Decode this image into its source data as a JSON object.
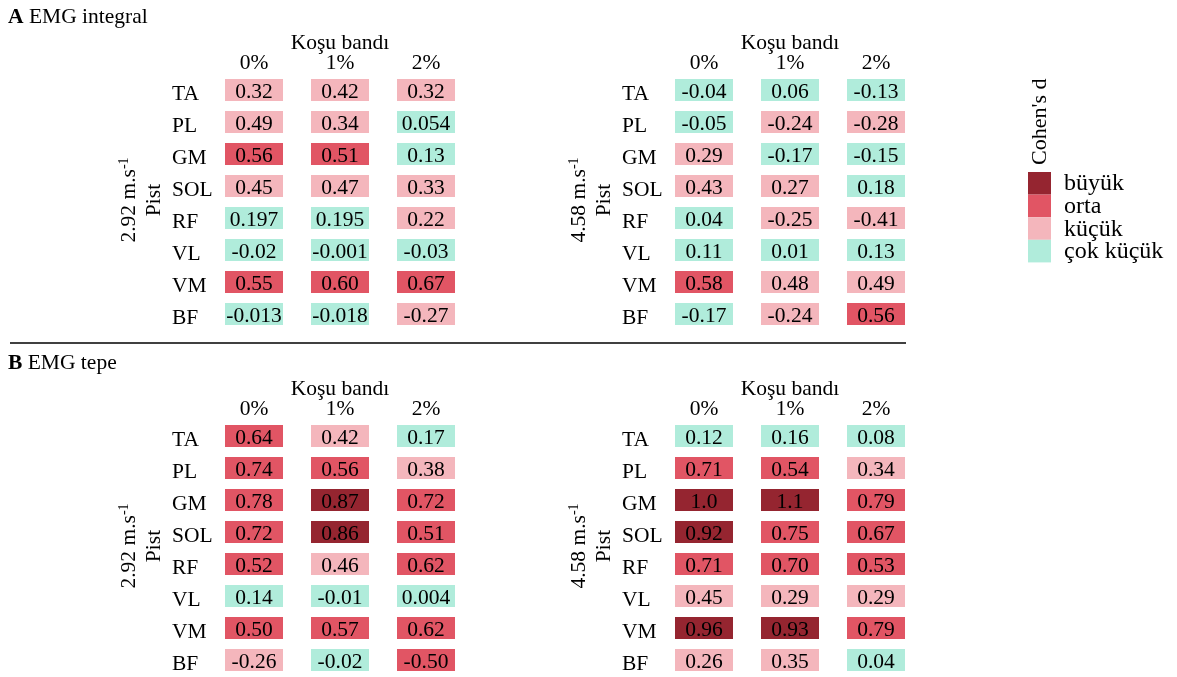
{
  "chart_data": [
    {
      "type": "heatmap",
      "title": "A EMG integral",
      "xlabel": "Koşu bandı",
      "ylabel": "2.92 m.s$^{-1}$\nPist",
      "categories": [
        "0%",
        "1%",
        "2%"
      ],
      "y_categories": [
        "TA",
        "PL",
        "GM",
        "SOL",
        "RF",
        "VL",
        "VM",
        "BF"
      ],
      "data_labels": true,
      "cells": [
        [
          0.32,
          0.42,
          0.32
        ],
        [
          0.49,
          0.34,
          0.054
        ],
        [
          0.56,
          0.51,
          0.13
        ],
        [
          0.45,
          0.47,
          0.33
        ],
        [
          0.197,
          0.195,
          0.22
        ],
        [
          -0.02,
          -0.001,
          -0.03
        ],
        [
          0.55,
          0.6,
          0.67
        ],
        [
          -0.013,
          -0.018,
          -0.27
        ]
      ],
      "cell_labels": [
        [
          "0.32",
          "0.42",
          "0.32"
        ],
        [
          "0.49",
          "0.34",
          "0.054"
        ],
        [
          "0.56",
          "0.51",
          "0.13"
        ],
        [
          "0.45",
          "0.47",
          "0.33"
        ],
        [
          "0.197",
          "0.195",
          "0.22"
        ],
        [
          "-0.02",
          "-0.001",
          "-0.03"
        ],
        [
          "0.55",
          "0.60",
          "0.67"
        ],
        [
          "-0.013",
          "-0.018",
          "-0.27"
        ]
      ],
      "colors": [
        [
          "#f4b6bc",
          "#f4b6bc",
          "#f4b6bc"
        ],
        [
          "#f4b6bc",
          "#f4b6bc",
          "#b0ecdb"
        ],
        [
          "#e15564",
          "#e15564",
          "#b0ecdb"
        ],
        [
          "#f4b6bc",
          "#f4b6bc",
          "#f4b6bc"
        ],
        [
          "#b0ecdb",
          "#b0ecdb",
          "#f4b6bc"
        ],
        [
          "#b0ecdb",
          "#b0ecdb",
          "#b0ecdb"
        ],
        [
          "#e15564",
          "#e15564",
          "#e15564"
        ],
        [
          "#b0ecdb",
          "#b0ecdb",
          "#f4b6bc"
        ]
      ]
    },
    {
      "type": "heatmap",
      "xlabel": "Koşu bandı",
      "ylabel": "4.58 m.s$^{-1}$\nPist",
      "categories": [
        "0%",
        "1%",
        "2%"
      ],
      "y_categories": [
        "TA",
        "PL",
        "GM",
        "SOL",
        "RF",
        "VL",
        "VM",
        "BF"
      ],
      "data_labels": true,
      "cells": [
        [
          -0.04,
          0.06,
          -0.13
        ],
        [
          -0.05,
          -0.24,
          -0.28
        ],
        [
          0.29,
          -0.17,
          -0.15
        ],
        [
          0.43,
          0.27,
          0.18
        ],
        [
          0.04,
          -0.25,
          -0.41
        ],
        [
          0.11,
          0.01,
          0.13
        ],
        [
          0.58,
          0.48,
          0.49
        ],
        [
          -0.17,
          -0.24,
          0.56
        ]
      ],
      "colors": [
        [
          "#b0ecdb",
          "#b0ecdb",
          "#b0ecdb"
        ],
        [
          "#b0ecdb",
          "#f4b6bc",
          "#f4b6bc"
        ],
        [
          "#f4b6bc",
          "#b0ecdb",
          "#b0ecdb"
        ],
        [
          "#f4b6bc",
          "#f4b6bc",
          "#b0ecdb"
        ],
        [
          "#b0ecdb",
          "#f4b6bc",
          "#f4b6bc"
        ],
        [
          "#b0ecdb",
          "#b0ecdb",
          "#b0ecdb"
        ],
        [
          "#e15564",
          "#f4b6bc",
          "#f4b6bc"
        ],
        [
          "#b0ecdb",
          "#f4b6bc",
          "#e15564"
        ]
      ]
    },
    {
      "type": "heatmap",
      "title": "B EMG tepe",
      "xlabel": "Koşu bandı",
      "ylabel": "2.92 m.s$^{-1}$\nPist",
      "categories": [
        "0%",
        "1%",
        "2%"
      ],
      "y_categories": [
        "TA",
        "PL",
        "GM",
        "SOL",
        "RF",
        "VL",
        "VM",
        "BF"
      ],
      "data_labels": true,
      "cells": [
        [
          0.64,
          0.42,
          0.17
        ],
        [
          0.74,
          0.56,
          0.38
        ],
        [
          0.78,
          0.87,
          0.72
        ],
        [
          0.72,
          0.86,
          0.51
        ],
        [
          0.52,
          0.46,
          0.62
        ],
        [
          0.14,
          -0.01,
          0.004
        ],
        [
          0.5,
          0.57,
          0.62
        ],
        [
          -0.26,
          -0.02,
          -0.5
        ]
      ],
      "cell_labels": [
        [
          "0.64",
          "0.42",
          "0.17"
        ],
        [
          "0.74",
          "0.56",
          "0.38"
        ],
        [
          "0.78",
          "0.87",
          "0.72"
        ],
        [
          "0.72",
          "0.86",
          "0.51"
        ],
        [
          "0.52",
          "0.46",
          "0.62"
        ],
        [
          "0.14",
          "-0.01",
          "0.004"
        ],
        [
          "0.50",
          "0.57",
          "0.62"
        ],
        [
          "-0.26",
          "-0.02",
          "-0.50"
        ]
      ],
      "colors": [
        [
          "#e15564",
          "#f4b6bc",
          "#b0ecdb"
        ],
        [
          "#e15564",
          "#e15564",
          "#f4b6bc"
        ],
        [
          "#e15564",
          "#952530",
          "#e15564"
        ],
        [
          "#e15564",
          "#952530",
          "#e15564"
        ],
        [
          "#e15564",
          "#f4b6bc",
          "#e15564"
        ],
        [
          "#b0ecdb",
          "#b0ecdb",
          "#b0ecdb"
        ],
        [
          "#e15564",
          "#e15564",
          "#e15564"
        ],
        [
          "#f4b6bc",
          "#b0ecdb",
          "#e15564"
        ]
      ]
    },
    {
      "type": "heatmap",
      "xlabel": "Koşu bandı",
      "ylabel": "4.58 m.s$^{-1}$\nPist",
      "categories": [
        "0%",
        "1%",
        "2%"
      ],
      "y_categories": [
        "TA",
        "PL",
        "GM",
        "SOL",
        "RF",
        "VL",
        "VM",
        "BF"
      ],
      "data_labels": true,
      "cells": [
        [
          0.12,
          0.16,
          0.08
        ],
        [
          0.71,
          0.54,
          0.34
        ],
        [
          1.0,
          1.1,
          0.79
        ],
        [
          0.92,
          0.75,
          0.67
        ],
        [
          0.71,
          0.7,
          0.53
        ],
        [
          0.45,
          0.29,
          0.29
        ],
        [
          0.96,
          0.93,
          0.79
        ],
        [
          0.26,
          0.35,
          0.04
        ]
      ],
      "cell_labels": [
        [
          "0.12",
          "0.16",
          "0.08"
        ],
        [
          "0.71",
          "0.54",
          "0.34"
        ],
        [
          "1.0",
          "1.1",
          "0.79"
        ],
        [
          "0.92",
          "0.75",
          "0.67"
        ],
        [
          "0.71",
          "0.70",
          "0.53"
        ],
        [
          "0.45",
          "0.29",
          "0.29"
        ],
        [
          "0.96",
          "0.93",
          "0.79"
        ],
        [
          "0.26",
          "0.35",
          "0.04"
        ]
      ],
      "colors": [
        [
          "#b0ecdb",
          "#b0ecdb",
          "#b0ecdb"
        ],
        [
          "#e15564",
          "#e15564",
          "#f4b6bc"
        ],
        [
          "#952530",
          "#952530",
          "#e15564"
        ],
        [
          "#952530",
          "#e15564",
          "#e15564"
        ],
        [
          "#e15564",
          "#e15564",
          "#e15564"
        ],
        [
          "#f4b6bc",
          "#f4b6bc",
          "#f4b6bc"
        ],
        [
          "#952530",
          "#952530",
          "#e15564"
        ],
        [
          "#f4b6bc",
          "#f4b6bc",
          "#b0ecdb"
        ]
      ]
    },
    {
      "type": "other",
      "legend_title": "Cohen's d",
      "series": [
        {
          "name": "büyük",
          "color": "#952530"
        },
        {
          "name": "orta",
          "color": "#e15564"
        },
        {
          "name": "küçük",
          "color": "#f4b6bc"
        },
        {
          "name": "çok küçük",
          "color": "#b0ecdb"
        }
      ]
    }
  ]
}
